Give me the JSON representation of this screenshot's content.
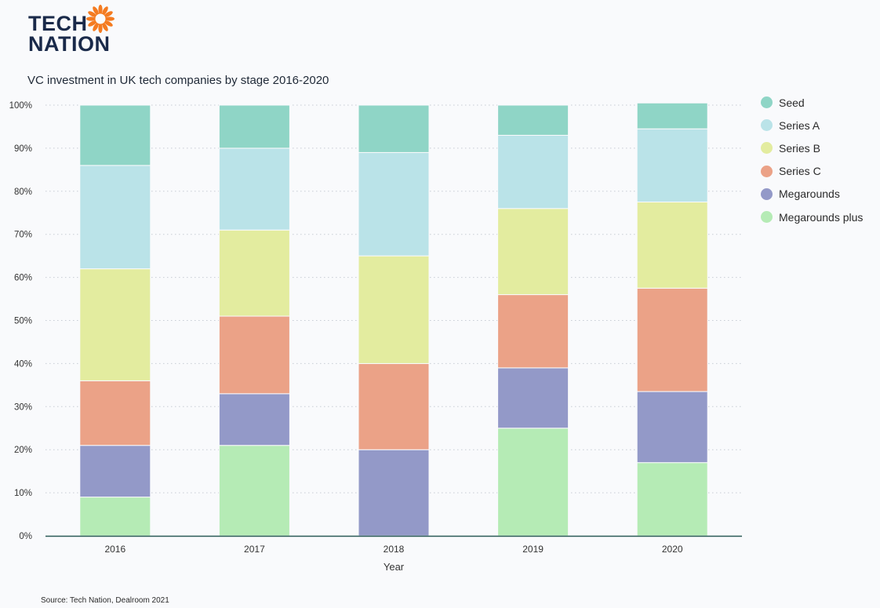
{
  "logo": {
    "line1": "TECH",
    "line2": "NATION",
    "sun_color": "#f47b20",
    "text_color": "#1a2a4a"
  },
  "source": "Source: Tech Nation, Dealroom 2021",
  "chart_data": {
    "type": "bar",
    "stacked": true,
    "title": "VC investment in UK tech companies by stage 2016-2020",
    "xlabel": "Year",
    "ylabel": "",
    "ylim": [
      0,
      100
    ],
    "y_ticks": [
      "0%",
      "10%",
      "20%",
      "30%",
      "40%",
      "50%",
      "60%",
      "70%",
      "80%",
      "90%",
      "100%"
    ],
    "grid": true,
    "legend_position": "right",
    "categories": [
      "2016",
      "2017",
      "2018",
      "2019",
      "2020"
    ],
    "series": [
      {
        "name": "Megarounds plus",
        "color": "#b5ebb5",
        "values": [
          9,
          21,
          0,
          25,
          17
        ]
      },
      {
        "name": "Megarounds",
        "color": "#9399c8",
        "values": [
          12,
          12,
          20,
          14,
          16.5
        ]
      },
      {
        "name": "Series C",
        "color": "#eba287",
        "values": [
          15,
          18,
          20,
          17,
          24
        ]
      },
      {
        "name": "Series B",
        "color": "#e3ec9f",
        "values": [
          26,
          20,
          25,
          20,
          20
        ]
      },
      {
        "name": "Series A",
        "color": "#bae3e8",
        "values": [
          24,
          19,
          24,
          17,
          17
        ]
      },
      {
        "name": "Seed",
        "color": "#8fd5c6",
        "values": [
          14,
          10,
          11,
          7,
          6
        ]
      }
    ],
    "legend_order": [
      "Seed",
      "Series A",
      "Series B",
      "Series C",
      "Megarounds",
      "Megarounds plus"
    ]
  }
}
